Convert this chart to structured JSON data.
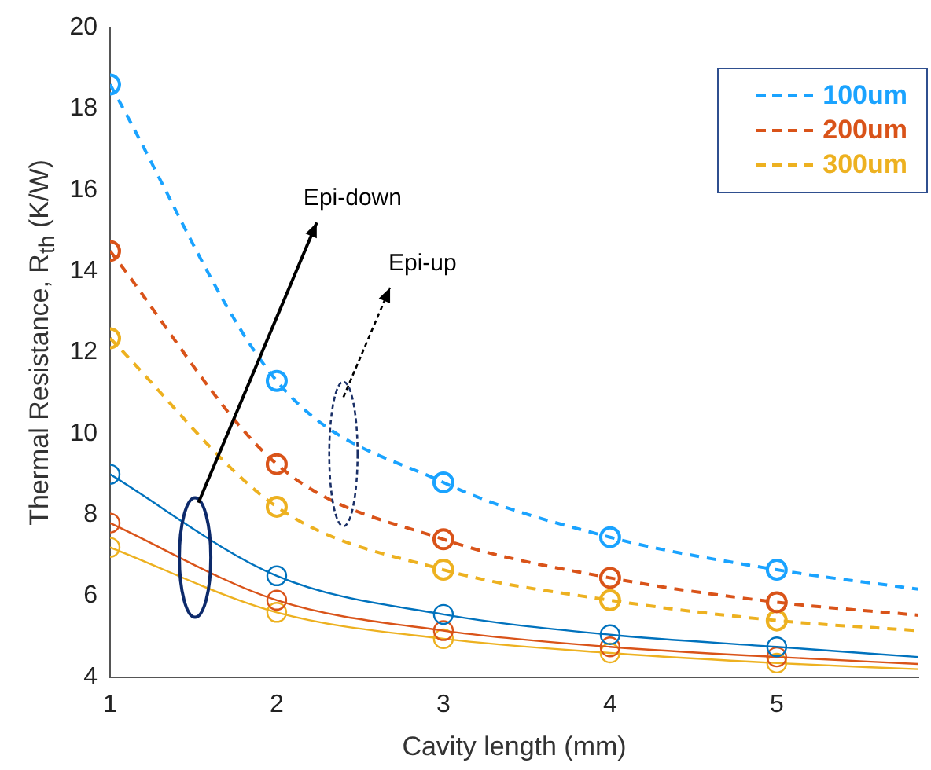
{
  "chart_data": {
    "type": "line",
    "xlabel": "Cavity length (mm)",
    "ylabel": "Thermal Resistance, R$_{th}$ (K/W)",
    "x": [
      1,
      2,
      3,
      4,
      5,
      5.85
    ],
    "series": [
      {
        "name": "100um",
        "color": "#1aa3ff",
        "line_style": "dashed",
        "values": [
          18.6,
          11.3,
          8.8,
          7.45,
          6.65,
          6.17
        ]
      },
      {
        "name": "200um",
        "color": "#d95319",
        "line_style": "dashed",
        "values": [
          14.5,
          9.25,
          7.4,
          6.45,
          5.85,
          5.53
        ]
      },
      {
        "name": "300um",
        "color": "#edb120",
        "line_style": "dashed",
        "values": [
          12.35,
          8.2,
          6.65,
          5.9,
          5.4,
          5.15
        ]
      },
      {
        "color": "#0072bd",
        "line_style": "solid",
        "values": [
          9.0,
          6.5,
          5.55,
          5.05,
          4.75,
          4.5
        ]
      },
      {
        "color": "#d95319",
        "line_style": "solid",
        "values": [
          7.8,
          5.9,
          5.15,
          4.75,
          4.5,
          4.33
        ]
      },
      {
        "color": "#edb120",
        "line_style": "solid",
        "values": [
          7.2,
          5.6,
          4.95,
          4.6,
          4.35,
          4.2
        ]
      }
    ],
    "marker": "circle",
    "legend": "top right",
    "grid": false,
    "xlim": [
      1,
      5.85
    ],
    "xticks": [
      1,
      2,
      3,
      4,
      5
    ],
    "ylim": [
      4,
      20
    ],
    "yticks": [
      4,
      6,
      8,
      10,
      12,
      14,
      16,
      18,
      20
    ],
    "annotations": [
      "Epi-down",
      "Epi-up"
    ]
  }
}
